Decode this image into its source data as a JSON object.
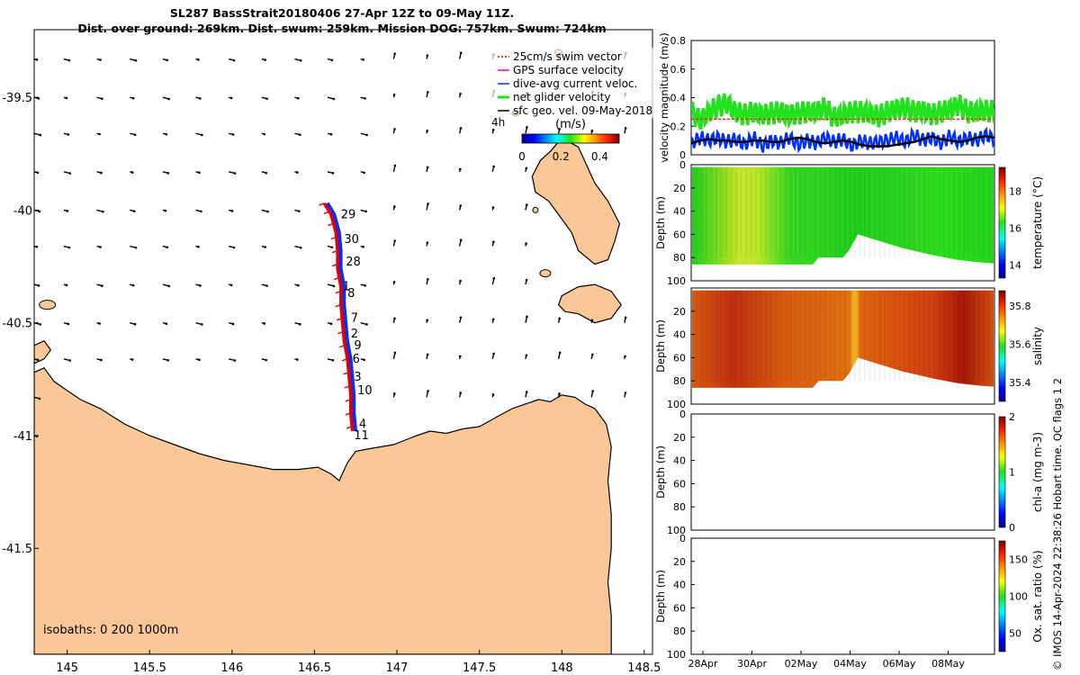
{
  "title": {
    "line1": "SL287 BassStrait20180406 27-Apr 12Z to 09-May 11Z.",
    "line2": "Dist. over ground: 269km. Dist. swum: 259km. Mission DOG: 757km. Swum: 724km"
  },
  "credit": "© IMOS 14-Apr-2024 22:38:26 Hobart time. QC flags 1  2",
  "colors": {
    "land": "#f9c896",
    "coast": "#000000",
    "track_red": "#e00000",
    "track_blue": "#0030ff",
    "green": "#22e11d",
    "black_line": "#000000"
  },
  "chart_data": [
    {
      "type": "map",
      "xlim": [
        144.8,
        148.55
      ],
      "ylim": [
        -41.97,
        -39.2
      ],
      "xticks": [
        145,
        145.5,
        146,
        146.5,
        147,
        147.5,
        148,
        148.5
      ],
      "yticks": [
        -39.5,
        -40,
        -40.5,
        -41,
        -41.5
      ],
      "xtick_labels": [
        "145",
        "145.5",
        "146",
        "146.5",
        "147",
        "147.5",
        "148",
        "148.5"
      ],
      "ytick_labels": [
        "-39.5",
        "-40",
        "-40.5",
        "-41",
        "-41.5"
      ],
      "legend": [
        {
          "label": "25cm/s swim vector",
          "color": "#e00000"
        },
        {
          "label": "GPS surface velocity",
          "color": "#e000e0"
        },
        {
          "label": "dive-avg current veloc.",
          "color": "#0030ff"
        },
        {
          "label": "net glider velocity",
          "color": "#22e11d"
        },
        {
          "label": "sfc geo. vel. 09-May-2018",
          "color": "#000000"
        }
      ],
      "legend_extra": "4h",
      "colorbar": {
        "title": "(m/s)",
        "ticks": [
          0,
          0.2,
          0.4
        ],
        "tick_labels": [
          "0",
          "0.2",
          "0.4"
        ],
        "range": [
          0,
          0.5
        ],
        "orientation": "horizontal"
      },
      "isobaths_label": "isobaths: 0   200  1000m",
      "track": [
        [
          146.56,
          -39.97
        ],
        [
          146.6,
          -40.02
        ],
        [
          146.63,
          -40.1
        ],
        [
          146.64,
          -40.18
        ],
        [
          146.64,
          -40.26
        ],
        [
          146.66,
          -40.34
        ],
        [
          146.66,
          -40.42
        ],
        [
          146.67,
          -40.5
        ],
        [
          146.68,
          -40.58
        ],
        [
          146.7,
          -40.66
        ],
        [
          146.71,
          -40.74
        ],
        [
          146.72,
          -40.82
        ],
        [
          146.72,
          -40.9
        ],
        [
          146.73,
          -40.98
        ]
      ],
      "day_labels": [
        {
          "text": "29",
          "x": 146.66,
          "y": -40.02
        },
        {
          "text": "30",
          "x": 146.68,
          "y": -40.13
        },
        {
          "text": "28",
          "x": 146.69,
          "y": -40.23
        },
        {
          "text": "1",
          "x": 146.67,
          "y": -40.34
        },
        {
          "text": "8",
          "x": 146.7,
          "y": -40.37
        },
        {
          "text": "7",
          "x": 146.72,
          "y": -40.48
        },
        {
          "text": "2",
          "x": 146.72,
          "y": -40.55
        },
        {
          "text": "9",
          "x": 146.74,
          "y": -40.6
        },
        {
          "text": "6",
          "x": 146.73,
          "y": -40.66
        },
        {
          "text": "3",
          "x": 146.74,
          "y": -40.74
        },
        {
          "text": "10",
          "x": 146.76,
          "y": -40.8
        },
        {
          "text": "4",
          "x": 146.77,
          "y": -40.95
        },
        {
          "text": "11",
          "x": 146.74,
          "y": -41.0
        }
      ]
    },
    {
      "type": "line",
      "ylabel": "velocity magnitude (m/s)",
      "ylim": [
        0,
        0.8
      ],
      "yticks": [
        0,
        0.2,
        0.4,
        0.6,
        0.8
      ],
      "ytick_labels": [
        "0",
        "0.2",
        "0.4",
        "0.6",
        "0.8"
      ],
      "xlim": [
        0,
        12
      ],
      "series": [
        {
          "color": "#22e11d",
          "values": [
            0.3,
            0.24,
            0.3,
            0.34,
            0.36,
            0.3,
            0.28,
            0.3,
            0.28,
            0.29,
            0.3,
            0.28,
            0.29,
            0.3,
            0.3,
            0.33,
            0.26,
            0.28,
            0.3,
            0.3,
            0.29,
            0.27,
            0.3,
            0.32,
            0.33,
            0.3,
            0.31,
            0.28,
            0.3,
            0.32,
            0.35,
            0.3,
            0.3,
            0.31,
            0.3
          ]
        },
        {
          "color": "#0030ff",
          "values": [
            0.08,
            0.12,
            0.1,
            0.12,
            0.09,
            0.11,
            0.07,
            0.12,
            0.06,
            0.1,
            0.08,
            0.12,
            0.07,
            0.1,
            0.08,
            0.12,
            0.09,
            0.11,
            0.06,
            0.1,
            0.08,
            0.09,
            0.1,
            0.12,
            0.09,
            0.14,
            0.1,
            0.12,
            0.08,
            0.13,
            0.09,
            0.12,
            0.1,
            0.14,
            0.11
          ]
        },
        {
          "color": "#000000",
          "values": [
            0.08,
            0.1,
            0.11,
            0.1,
            0.1,
            0.09,
            0.09,
            0.1,
            0.1,
            0.09,
            0.09,
            0.11,
            0.12,
            0.11,
            0.09,
            0.08,
            0.09,
            0.1,
            0.09,
            0.07,
            0.06,
            0.06,
            0.06,
            0.07,
            0.08,
            0.09,
            0.11,
            0.13,
            0.11,
            0.1,
            0.09,
            0.1,
            0.12,
            0.13,
            0.12
          ]
        },
        {
          "color": "#ff2020",
          "dashed": true,
          "values": [
            0.25,
            0.25
          ]
        }
      ]
    },
    {
      "type": "heatmap",
      "ylabel": "Depth (m)",
      "ylim": [
        100,
        0
      ],
      "yticks": [
        0,
        20,
        40,
        60,
        80,
        100
      ],
      "colorbar": {
        "label": "temperature (°C)",
        "ticks": [
          14,
          16,
          18
        ],
        "range": [
          13.3,
          19.3
        ]
      }
    },
    {
      "type": "heatmap",
      "ylabel": "Depth (m)",
      "ylim": [
        100,
        0
      ],
      "yticks": [
        20,
        40,
        60,
        80,
        100
      ],
      "colorbar": {
        "label": "salinity",
        "ticks": [
          35.4,
          35.6,
          35.8
        ],
        "tick_labels": [
          "35.4",
          "35.6",
          "35.8"
        ],
        "range": [
          35.3,
          35.88
        ]
      }
    },
    {
      "type": "heatmap",
      "ylabel": "Depth (m)",
      "ylim": [
        100,
        0
      ],
      "yticks": [
        0,
        20,
        40,
        60,
        80,
        100
      ],
      "colorbar": {
        "label": "chl-a (mg m-3)",
        "ticks": [
          0,
          1,
          2
        ],
        "range": [
          0,
          2
        ]
      }
    },
    {
      "type": "heatmap",
      "ylabel": "Depth (m)",
      "ylim": [
        100,
        0
      ],
      "yticks": [
        0,
        20,
        40,
        60,
        80,
        100
      ],
      "colorbar": {
        "label": "Ox. sat. ratio (%)",
        "ticks": [
          50,
          100,
          150
        ],
        "range": [
          25,
          175
        ]
      },
      "xtick_labels": [
        "28Apr",
        "30Apr",
        "02May",
        "04May",
        "06May",
        "08May"
      ]
    }
  ]
}
